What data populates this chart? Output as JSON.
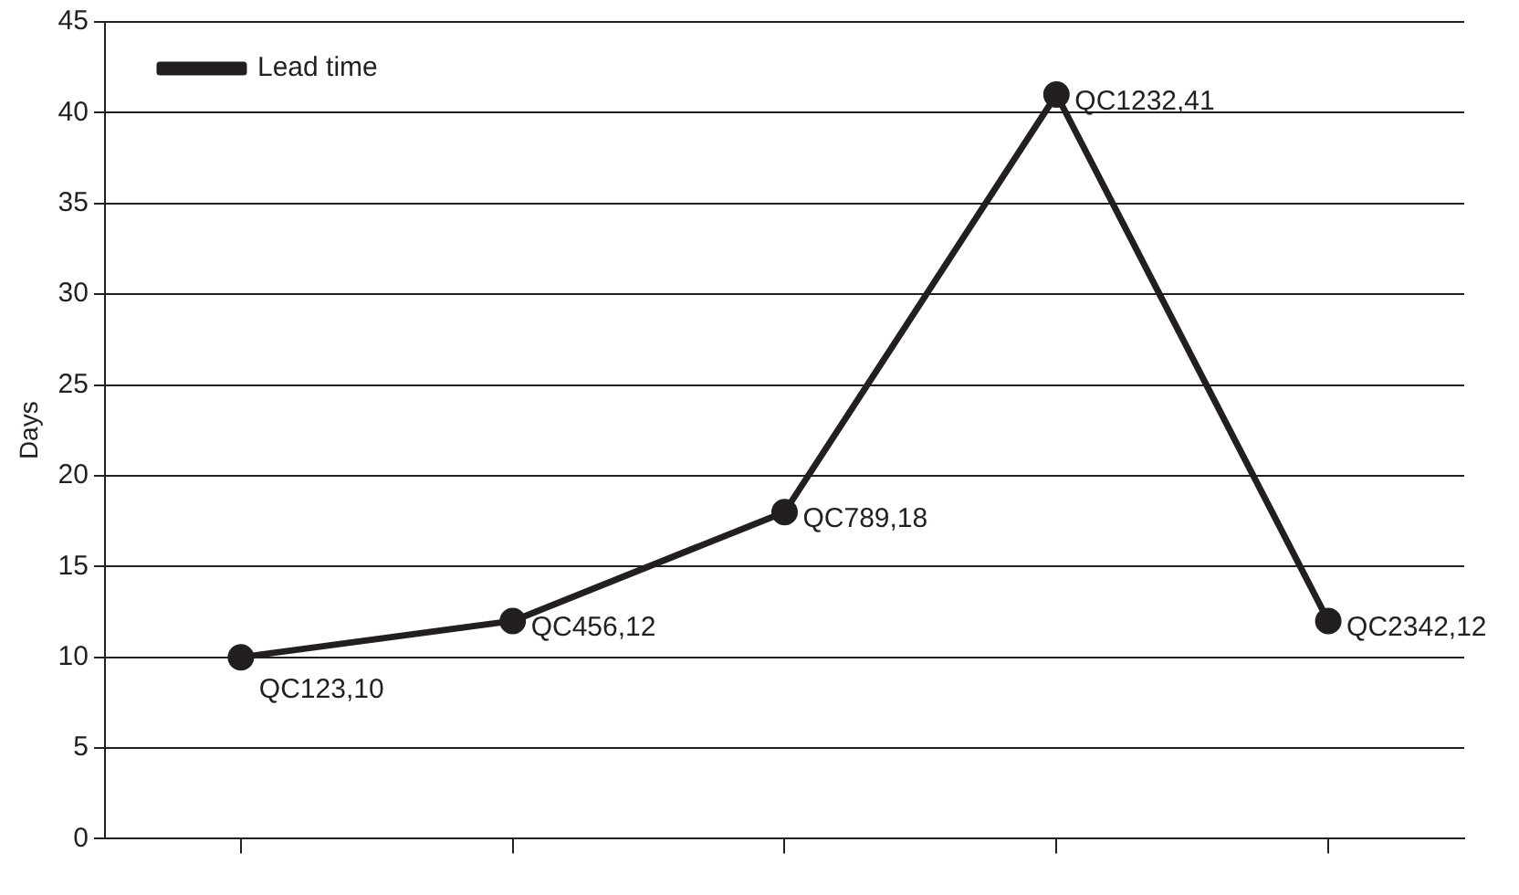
{
  "chart_data": {
    "type": "line",
    "ylabel": "Days",
    "categories": [
      null,
      null,
      null,
      null,
      null
    ],
    "series": [
      {
        "name": "Lead time",
        "color": "#231f20",
        "values": [
          10,
          12,
          18,
          41,
          12
        ],
        "value_labels": [
          "QC123,10",
          "QC456,12",
          "QC789,18",
          "QC1232,41",
          "QC2342,12"
        ]
      }
    ],
    "ylim": [
      0,
      45
    ],
    "yticks": [
      0,
      5,
      10,
      15,
      20,
      25,
      30,
      35,
      40,
      45
    ],
    "grid": "y",
    "legend": "top left",
    "marker": "circle",
    "line_style": "solid"
  }
}
